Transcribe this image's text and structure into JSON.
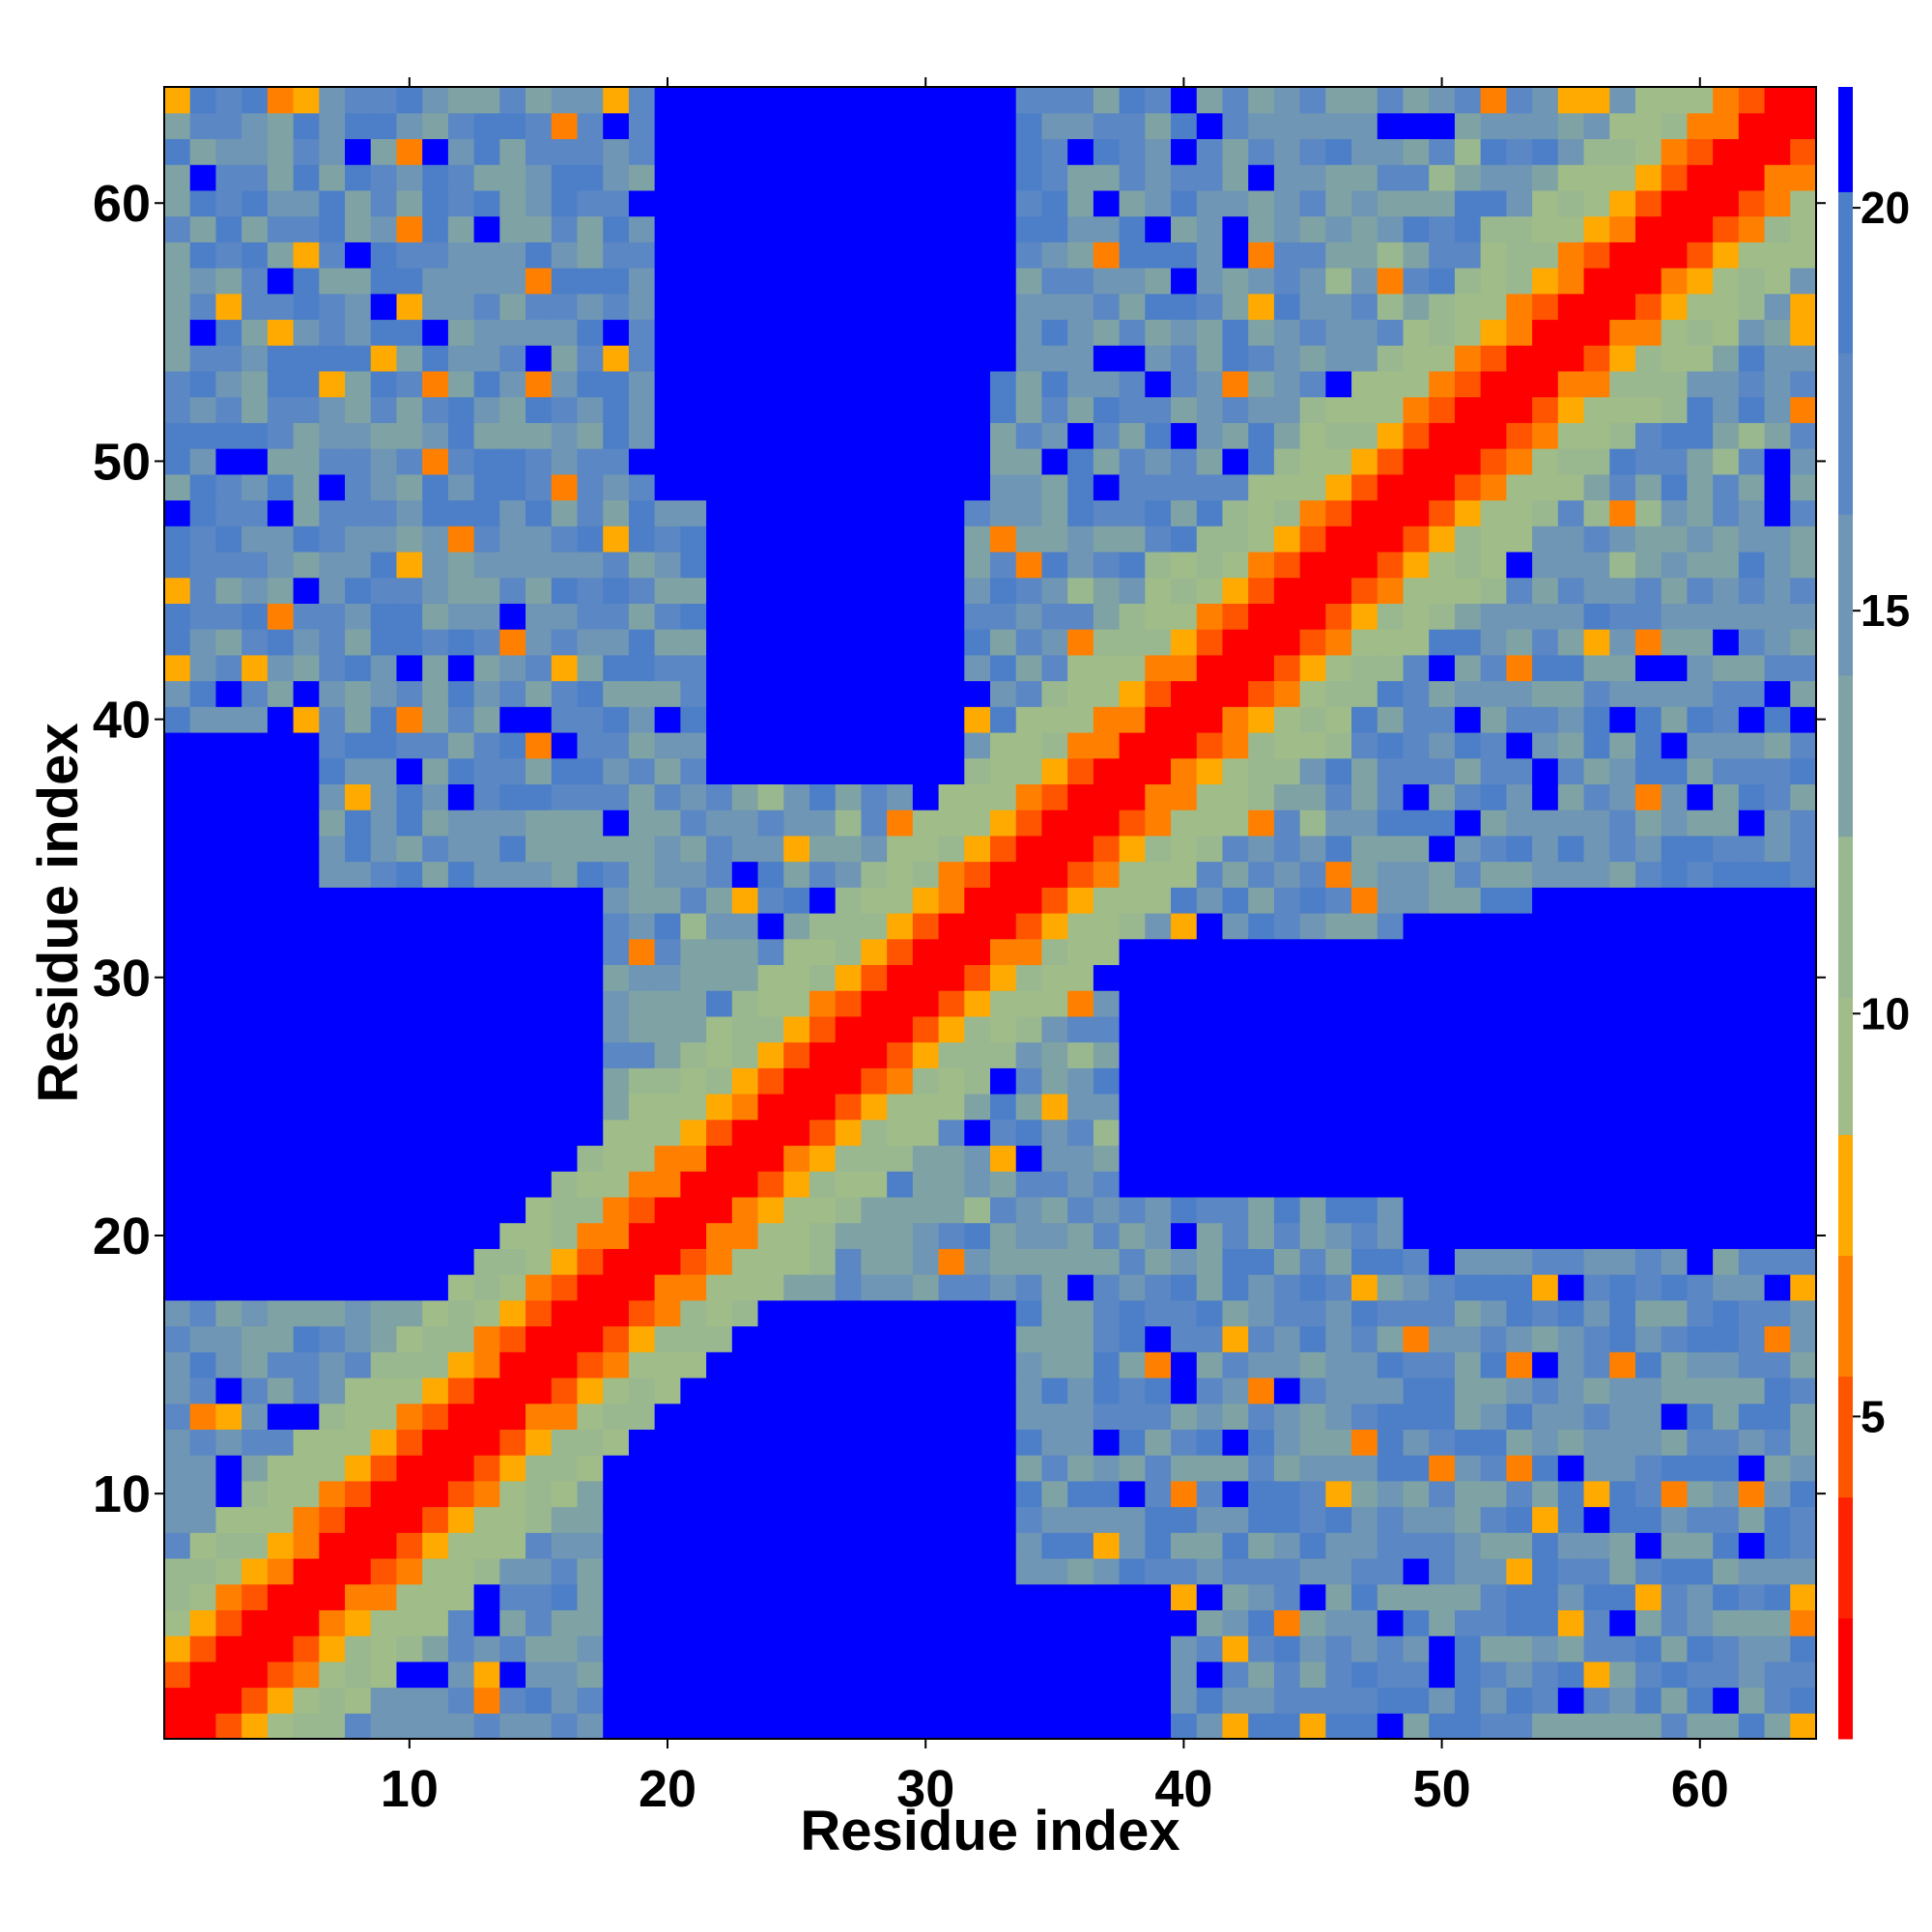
{
  "chart_data": {
    "type": "heatmap",
    "title": "",
    "xlabel": "Residue index",
    "ylabel": "Residue index",
    "xlim": [
      0.5,
      64.5
    ],
    "ylim": [
      0.5,
      64.5
    ],
    "x_ticks": [
      10,
      20,
      30,
      40,
      50,
      60
    ],
    "y_ticks": [
      10,
      20,
      30,
      40,
      50,
      60
    ],
    "x_tick_labels": [
      "10",
      "20",
      "30",
      "40",
      "50",
      "60"
    ],
    "y_tick_labels": [
      "10",
      "20",
      "30",
      "40",
      "50",
      "60"
    ],
    "n_residues": 64,
    "colorbar": {
      "range": [
        1,
        21.5
      ],
      "ticks": [
        5,
        10,
        15,
        20
      ],
      "tick_labels": [
        "5",
        "10",
        "15",
        "20"
      ],
      "bins": [
        {
          "max": 2.5,
          "color": "#ff0000"
        },
        {
          "max": 4,
          "color": "#ff2200"
        },
        {
          "max": 5.5,
          "color": "#ff5500"
        },
        {
          "max": 7,
          "color": "#ff8000"
        },
        {
          "max": 8.5,
          "color": "#ffaa00"
        },
        {
          "max": 10.2,
          "color": "#a0bc88"
        },
        {
          "max": 12.2,
          "color": "#9ab890"
        },
        {
          "max": 14.2,
          "color": "#7fa3a4"
        },
        {
          "max": 16.2,
          "color": "#6f96b4"
        },
        {
          "max": 18.2,
          "color": "#5b87c4"
        },
        {
          "max": 20.2,
          "color": "#4d7fc8"
        },
        {
          "max": 99,
          "color": "#0000ff"
        }
      ]
    },
    "description": "Pairwise residue distance map, symmetric about the diagonal; red along the diagonal (short distances), orange/yellow near-diagonal bands, green/steel-blue mid-range, and pure blue (>20) in large off-diagonal blocks.",
    "far_regions": [
      {
        "x": [
          1,
          17
        ],
        "y": [
          18,
          33
        ]
      },
      {
        "x": [
          18,
          33
        ],
        "y": [
          1,
          17
        ]
      },
      {
        "x": [
          20,
          32
        ],
        "y": [
          49,
          64
        ]
      },
      {
        "x": [
          49,
          64
        ],
        "y": [
          20,
          32
        ]
      },
      {
        "x": [
          22,
          31
        ],
        "y": [
          38,
          48
        ]
      },
      {
        "x": [
          38,
          48
        ],
        "y": [
          22,
          31
        ]
      },
      {
        "x": [
          1,
          6
        ],
        "y": [
          34,
          39
        ]
      },
      {
        "x": [
          34,
          39
        ],
        "y": [
          1,
          6
        ]
      },
      {
        "x": [
          54,
          64
        ],
        "y": [
          20,
          33
        ]
      },
      {
        "x": [
          20,
          33
        ],
        "y": [
          54,
          64
        ]
      }
    ]
  }
}
